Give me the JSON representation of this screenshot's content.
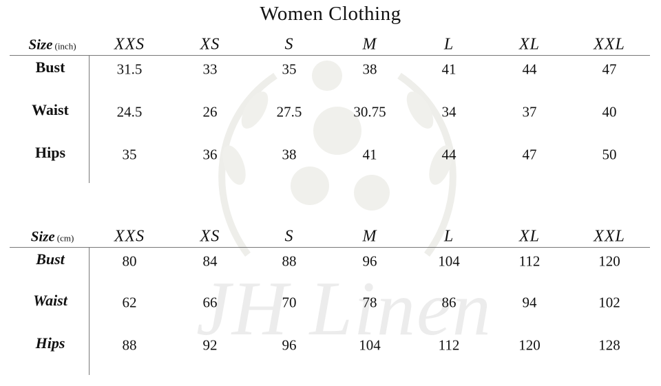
{
  "title": "Women Clothing",
  "watermark": "JH Linen",
  "sizes": [
    "XXS",
    "XS",
    "S",
    "M",
    "L",
    "XL",
    "XXL"
  ],
  "tables": [
    {
      "size_label": "Size",
      "unit": "(inch)",
      "rows": [
        {
          "label": "Bust",
          "values": [
            "31.5",
            "33",
            "35",
            "38",
            "41",
            "44",
            "47"
          ]
        },
        {
          "label": "Waist",
          "values": [
            "24.5",
            "26",
            "27.5",
            "30.75",
            "34",
            "37",
            "40"
          ]
        },
        {
          "label": "Hips",
          "values": [
            "35",
            "36",
            "38",
            "41",
            "44",
            "47",
            "50"
          ]
        }
      ]
    },
    {
      "size_label": "Size",
      "unit": "(cm)",
      "rows": [
        {
          "label": "Bust",
          "values": [
            "80",
            "84",
            "88",
            "96",
            "104",
            "112",
            "120"
          ]
        },
        {
          "label": "Waist",
          "values": [
            "62",
            "66",
            "70",
            "78",
            "86",
            "94",
            "102"
          ]
        },
        {
          "label": "Hips",
          "values": [
            "88",
            "92",
            "96",
            "104",
            "112",
            "120",
            "128"
          ]
        }
      ]
    }
  ]
}
